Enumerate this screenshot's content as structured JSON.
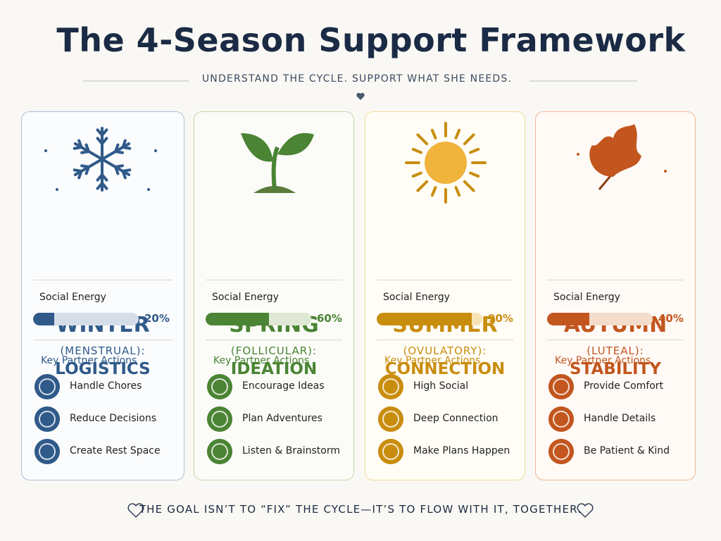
{
  "header": {
    "title": "The 4-Season Support Framework",
    "subtitle": "UNDERSTAND THE CYCLE.  SUPPORT WHAT SHE NEEDS."
  },
  "seasons": [
    {
      "name": "WINTER",
      "phase": "(MENSTRUAL):",
      "theme": "LOGISTICS",
      "energy_title": "Social Energy",
      "energy": 20,
      "energy_label": "20%",
      "actions_title": "Key Partner Actions",
      "actions": [
        "Handle Chores",
        "Reduce Decisions",
        "Create Rest Space"
      ]
    },
    {
      "name": "SPRING",
      "phase": "(FOLLICULAR):",
      "theme": "IDEATION",
      "energy_title": "Social Energy",
      "energy": 60,
      "energy_label": "60%",
      "actions_title": "Key Partner Actions",
      "actions": [
        "Encourage Ideas",
        "Plan Adventures",
        "Listen & Brainstorm"
      ]
    },
    {
      "name": "SUMMER",
      "phase": "(OVULATORY):",
      "theme": "CONNECTION",
      "energy_title": "Social Energy",
      "energy": 90,
      "energy_label": "90%",
      "actions_title": "Key Partner Actions",
      "actions": [
        "High Social",
        "Deep Connection",
        "Make Plans Happen"
      ]
    },
    {
      "name": "AUTUMN",
      "phase": "(LUTEAL):",
      "theme": "STABILITY",
      "energy_title": "Social Energy",
      "energy": 40,
      "energy_label": "40%",
      "actions_title": "Key Partner Actions",
      "actions": [
        "Provide Comfort",
        "Handle Details",
        "Be Patient & Kind"
      ]
    }
  ],
  "footer": {
    "text": "THE GOAL ISN’T TO “FIX” THE CYCLE—IT’S TO FLOW WITH IT, TOGETHER."
  }
}
